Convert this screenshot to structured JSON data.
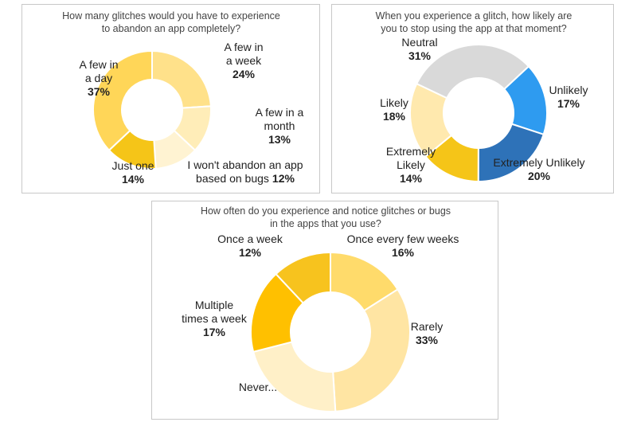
{
  "chart_data": [
    {
      "type": "pie",
      "title": [
        "How many glitches would you have to experience",
        "to abandon an app completely?"
      ],
      "slices": [
        {
          "label": [
            "A few in",
            "a week"
          ],
          "pct": "24%",
          "value": 24,
          "color": "#FFE18A"
        },
        {
          "label": [
            "A few in a",
            "month"
          ],
          "pct": "13%",
          "value": 13,
          "color": "#FFEDB8"
        },
        {
          "label": [
            "I won't abandon an app",
            "based on bugs"
          ],
          "pct": "12%",
          "value": 12,
          "color": "#FFF3D2"
        },
        {
          "label": [
            "Just one"
          ],
          "pct": "14%",
          "value": 14,
          "color": "#F5C518"
        },
        {
          "label": [
            "A few in",
            "a day"
          ],
          "pct": "37%",
          "value": 37,
          "color": "#FFD658"
        }
      ]
    },
    {
      "type": "pie",
      "title": [
        "When you experience  a glitch, how likely are",
        "you to stop using the app at that moment?"
      ],
      "slices": [
        {
          "label": [
            "Unlikely"
          ],
          "pct": "17%",
          "value": 17,
          "color": "#2E9BF0"
        },
        {
          "label": [
            "Extremely Unlikely"
          ],
          "pct": "20%",
          "value": 20,
          "color": "#2E72B8"
        },
        {
          "label": [
            "Extremely",
            "Likely"
          ],
          "pct": "14%",
          "value": 14,
          "color": "#F5C518"
        },
        {
          "label": [
            "Likely"
          ],
          "pct": "18%",
          "value": 18,
          "color": "#FFE9AE"
        },
        {
          "label": [
            "Neutral"
          ],
          "pct": "31%",
          "value": 31,
          "color": "#D9D9D9"
        }
      ]
    },
    {
      "type": "pie",
      "title": [
        "How often do you experience and notice glitches or bugs",
        "in the apps that you use?"
      ],
      "slices": [
        {
          "label": [
            "Once every few weeks"
          ],
          "pct": "16%",
          "value": 16,
          "color": "#FFDB6B"
        },
        {
          "label": [
            "Rarely"
          ],
          "pct": "33%",
          "value": 33,
          "color": "#FFE5A3"
        },
        {
          "label": [
            "Never..."
          ],
          "pct": "",
          "value": 22,
          "color": "#FFF0C8"
        },
        {
          "label": [
            "Multiple",
            "times a week"
          ],
          "pct": "17%",
          "value": 17,
          "color": "#FFC000"
        },
        {
          "label": [
            "Once a week"
          ],
          "pct": "12%",
          "value": 12,
          "color": "#F7C31E"
        }
      ]
    }
  ]
}
